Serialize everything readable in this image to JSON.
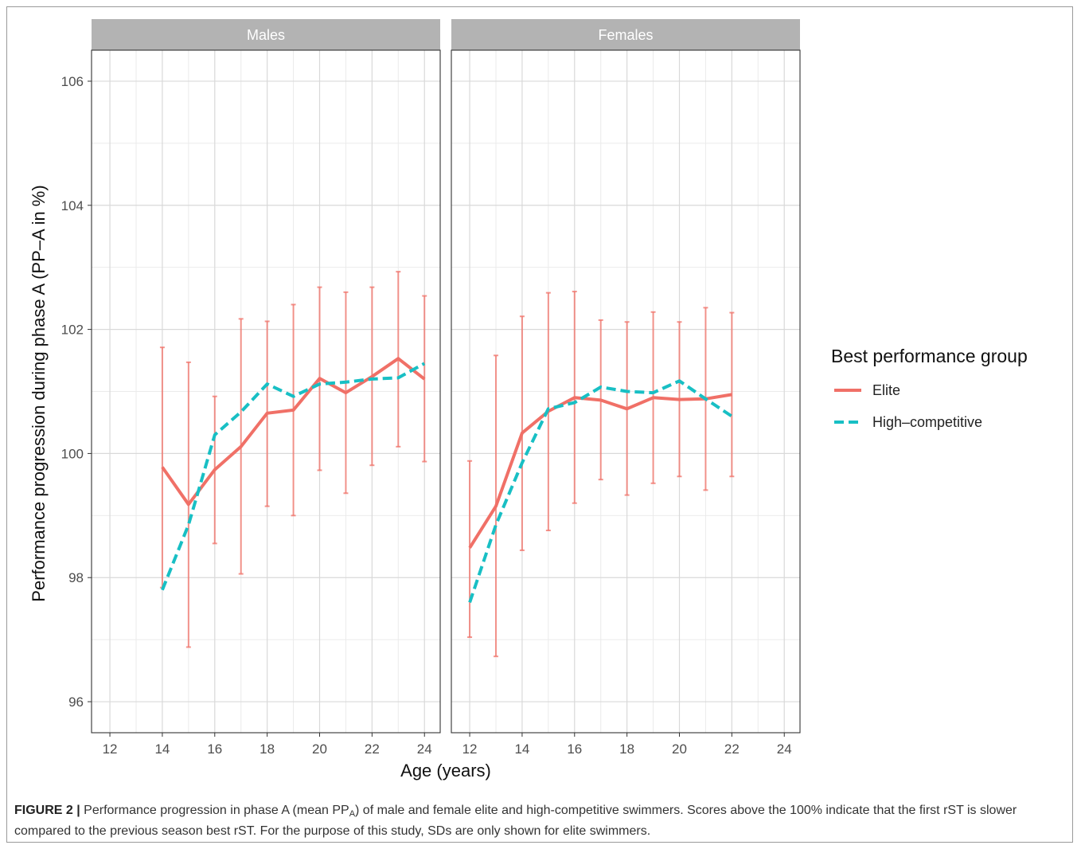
{
  "chart_data": {
    "type": "line",
    "xlabel": "Age (years)",
    "ylabel": "Performance progression during phase A (PP–A in %)",
    "ylim": [
      95.5,
      106.5
    ],
    "y_ticks": [
      96,
      98,
      100,
      102,
      104,
      106
    ],
    "x_ticks": [
      12,
      14,
      16,
      18,
      20,
      22,
      24
    ],
    "grid": true,
    "legend": {
      "title": "Best performance group",
      "placement": "right",
      "entries": [
        "Elite",
        "High–competitive"
      ]
    },
    "panels": [
      {
        "strip_label": "Males",
        "xlim": [
          11.3,
          24.6
        ],
        "series": [
          {
            "name": "Elite",
            "color": "#F07067",
            "style": "solid",
            "x": [
              14,
              15,
              16,
              17,
              18,
              19,
              20,
              21,
              22,
              23,
              24
            ],
            "y": [
              99.78,
              99.18,
              99.74,
              100.11,
              100.65,
              100.7,
              101.21,
              100.98,
              101.24,
              101.53,
              101.2
            ],
            "error_low": [
              97.84,
              96.88,
              98.55,
              98.06,
              99.15,
              99.0,
              99.73,
              99.36,
              99.81,
              100.11,
              99.87
            ],
            "error_high": [
              101.71,
              101.47,
              100.92,
              102.17,
              102.13,
              102.4,
              102.68,
              102.6,
              102.68,
              102.93,
              102.54
            ]
          },
          {
            "name": "High–competitive",
            "color": "#18BFC4",
            "style": "dashed",
            "x": [
              14,
              15,
              16,
              17,
              18,
              19,
              20,
              21,
              22,
              23,
              24
            ],
            "y": [
              97.8,
              98.85,
              100.3,
              100.67,
              101.12,
              100.92,
              101.12,
              101.15,
              101.2,
              101.22,
              101.45
            ]
          }
        ]
      },
      {
        "strip_label": "Females",
        "xlim": [
          11.3,
          24.6
        ],
        "series": [
          {
            "name": "Elite",
            "color": "#F07067",
            "style": "solid",
            "x": [
              12,
              13,
              14,
              15,
              16,
              17,
              18,
              19,
              20,
              21,
              22
            ],
            "y": [
              98.48,
              99.15,
              100.33,
              100.68,
              100.9,
              100.86,
              100.72,
              100.9,
              100.87,
              100.88,
              100.95
            ],
            "error_low": [
              97.04,
              96.73,
              98.44,
              98.76,
              99.2,
              99.58,
              99.33,
              99.52,
              99.63,
              99.41,
              99.63
            ],
            "error_high": [
              99.88,
              101.58,
              102.21,
              102.59,
              102.61,
              102.15,
              102.12,
              102.28,
              102.12,
              102.35,
              102.27
            ]
          },
          {
            "name": "High–competitive",
            "color": "#18BFC4",
            "style": "dashed",
            "x": [
              12,
              13,
              14,
              15,
              16,
              17,
              18,
              19,
              20,
              21,
              22
            ],
            "y": [
              97.6,
              98.85,
              99.85,
              100.72,
              100.82,
              101.07,
              101.0,
              100.98,
              101.17,
              100.88,
              100.6
            ]
          }
        ]
      }
    ]
  },
  "caption": {
    "label": "FIGURE 2 |",
    "text_before_sub": "Performance progression in phase A (mean PP",
    "sub": "A",
    "text_after_sub": ") of male and female elite and high-competitive swimmers. Scores above the 100% indicate that the first rST is slower compared to the previous season best rST. For the purpose of this study, SDs are only shown for elite swimmers."
  }
}
